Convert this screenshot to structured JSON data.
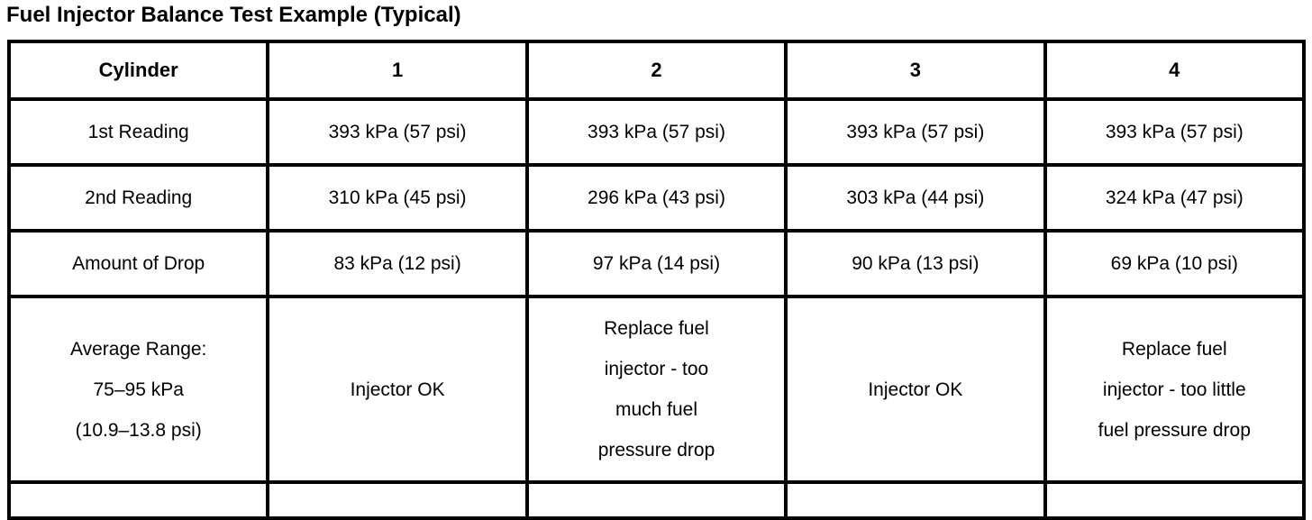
{
  "title": "Fuel Injector Balance Test Example (Typical)",
  "colors": {
    "text": "#000000",
    "border": "#000000",
    "background": "#ffffff"
  },
  "table": {
    "columns": [
      "Cylinder",
      "1",
      "2",
      "3",
      "4"
    ],
    "rows": [
      {
        "label": "1st Reading",
        "cells": [
          "393 kPa (57 psi)",
          "393 kPa (57 psi)",
          "393 kPa (57 psi)",
          "393 kPa (57 psi)"
        ]
      },
      {
        "label": "2nd Reading",
        "cells": [
          "310 kPa (45 psi)",
          "296 kPa (43 psi)",
          "303 kPa (44 psi)",
          "324 kPa (47 psi)"
        ]
      },
      {
        "label": "Amount of Drop",
        "cells": [
          "83 kPa (12 psi)",
          "97 kPa (14 psi)",
          "90 kPa (13 psi)",
          "69 kPa (10 psi)"
        ]
      },
      {
        "label": "Average Range:\n75–95 kPa\n(10.9–13.8 psi)",
        "cells": [
          "Injector OK",
          "Replace fuel\ninjector - too\nmuch fuel\npressure drop",
          "Injector OK",
          "Replace fuel\ninjector - too little\nfuel pressure drop"
        ]
      }
    ]
  }
}
